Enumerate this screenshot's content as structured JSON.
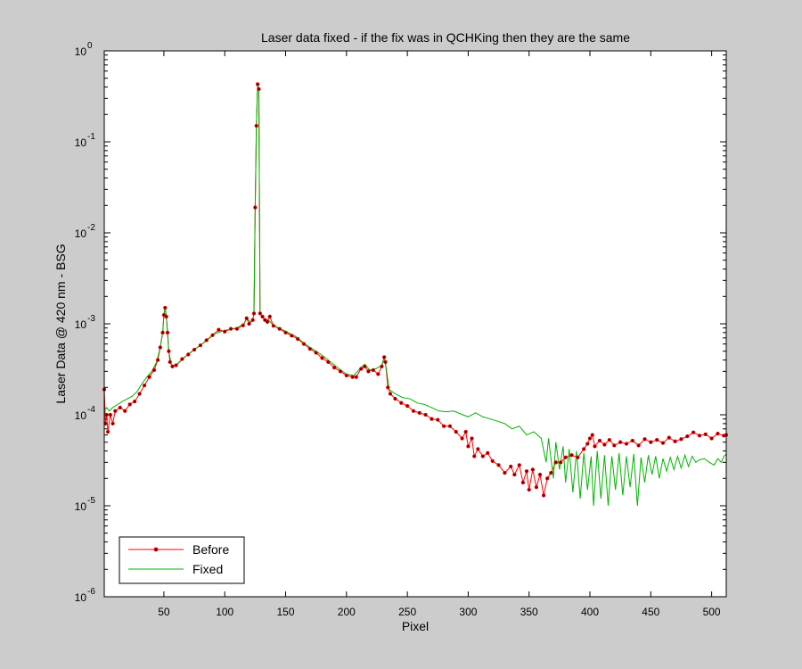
{
  "chart_data": {
    "type": "line",
    "title": "Laser data fixed - if the fix was in QCHKing then they are the same",
    "xlabel": "Pixel",
    "ylabel": "Laser Data @ 420 nm - BSG",
    "xlim": [
      1,
      512
    ],
    "ylim": [
      1e-06,
      1
    ],
    "yscale": "log",
    "xticks": [
      50,
      100,
      150,
      200,
      250,
      300,
      350,
      400,
      450,
      500
    ],
    "xtick_labels": [
      "50",
      "100",
      "150",
      "200",
      "250",
      "300",
      "350",
      "400",
      "450",
      "500"
    ],
    "ytick_exponents": [
      -6,
      -5,
      -4,
      -3,
      -2,
      -1,
      0
    ],
    "ytick_base": "10",
    "grid": false,
    "legend_position": "bottom-left",
    "series": [
      {
        "name": "Before",
        "color": "#ff0000",
        "marker_color": "#800000",
        "style": "line-with-dot-markers",
        "points": [
          [
            1,
            0.00019
          ],
          [
            2,
            8e-05
          ],
          [
            3,
            0.0001
          ],
          [
            4,
            6.5e-05
          ],
          [
            6,
            0.0001
          ],
          [
            8,
            8e-05
          ],
          [
            10,
            0.00011
          ],
          [
            14,
            0.00012
          ],
          [
            18,
            0.00011
          ],
          [
            22,
            0.00013
          ],
          [
            26,
            0.00014
          ],
          [
            30,
            0.00017
          ],
          [
            34,
            0.00021
          ],
          [
            38,
            0.00026
          ],
          [
            42,
            0.00031
          ],
          [
            45,
            0.0004
          ],
          [
            47,
            0.00055
          ],
          [
            49,
            0.0008
          ],
          [
            50,
            0.00125
          ],
          [
            51,
            0.0015
          ],
          [
            52,
            0.0012
          ],
          [
            53,
            0.0008
          ],
          [
            54,
            0.0005
          ],
          [
            55,
            0.00038
          ],
          [
            57,
            0.00034
          ],
          [
            60,
            0.00035
          ],
          [
            65,
            0.00041
          ],
          [
            70,
            0.00046
          ],
          [
            75,
            0.00052
          ],
          [
            80,
            0.00058
          ],
          [
            85,
            0.00066
          ],
          [
            90,
            0.00075
          ],
          [
            95,
            0.00086
          ],
          [
            100,
            0.00082
          ],
          [
            105,
            0.00088
          ],
          [
            110,
            0.00088
          ],
          [
            115,
            0.00096
          ],
          [
            118,
            0.00115
          ],
          [
            120,
            0.001
          ],
          [
            123,
            0.0011
          ],
          [
            124,
            0.0013
          ],
          [
            125,
            0.019
          ],
          [
            126,
            0.15
          ],
          [
            127,
            0.43
          ],
          [
            128,
            0.38
          ],
          [
            129,
            0.0013
          ],
          [
            131,
            0.0012
          ],
          [
            133,
            0.0011
          ],
          [
            135,
            0.00105
          ],
          [
            137,
            0.0012
          ],
          [
            140,
            0.00095
          ],
          [
            145,
            0.00088
          ],
          [
            150,
            0.0008
          ],
          [
            155,
            0.00074
          ],
          [
            160,
            0.00068
          ],
          [
            165,
            0.0006
          ],
          [
            170,
            0.00053
          ],
          [
            175,
            0.00048
          ],
          [
            180,
            0.00042
          ],
          [
            185,
            0.00038
          ],
          [
            190,
            0.00033
          ],
          [
            195,
            0.0003
          ],
          [
            200,
            0.00027
          ],
          [
            205,
            0.00026
          ],
          [
            208,
            0.00026
          ],
          [
            212,
            0.00032
          ],
          [
            215,
            0.00034
          ],
          [
            218,
            0.0003
          ],
          [
            222,
            0.00031
          ],
          [
            226,
            0.00028
          ],
          [
            229,
            0.00034
          ],
          [
            231,
            0.00043
          ],
          [
            232,
            0.00038
          ],
          [
            234,
            0.0002
          ],
          [
            236,
            0.00017
          ],
          [
            240,
            0.00015
          ],
          [
            245,
            0.000135
          ],
          [
            250,
            0.000125
          ],
          [
            255,
            0.00011
          ],
          [
            260,
            0.000105
          ],
          [
            265,
            0.0001
          ],
          [
            270,
            9e-05
          ],
          [
            275,
            8.8e-05
          ],
          [
            280,
            7.5e-05
          ],
          [
            285,
            7.5e-05
          ],
          [
            290,
            6.5e-05
          ],
          [
            295,
            5.5e-05
          ],
          [
            298,
            6.5e-05
          ],
          [
            300,
            4.5e-05
          ],
          [
            303,
            5.5e-05
          ],
          [
            305,
            3.5e-05
          ],
          [
            308,
            4.2e-05
          ],
          [
            312,
            3.5e-05
          ],
          [
            316,
            3.8e-05
          ],
          [
            320,
            3.1e-05
          ],
          [
            325,
            2.8e-05
          ],
          [
            330,
            2.3e-05
          ],
          [
            335,
            2.7e-05
          ],
          [
            338,
            2.2e-05
          ],
          [
            342,
            2.8e-05
          ],
          [
            345,
            1.8e-05
          ],
          [
            348,
            2.4e-05
          ],
          [
            350,
            1.5e-05
          ],
          [
            353,
            2.5e-05
          ],
          [
            356,
            1.6e-05
          ],
          [
            359,
            2.2e-05
          ],
          [
            362,
            1.3e-05
          ],
          [
            365,
            2e-05
          ],
          [
            368,
            2.3e-05
          ],
          [
            372,
            3e-05
          ],
          [
            376,
            3e-05
          ],
          [
            380,
            3.4e-05
          ],
          [
            385,
            3.6e-05
          ],
          [
            390,
            3.4e-05
          ],
          [
            395,
            4.2e-05
          ],
          [
            398,
            4.8e-05
          ],
          [
            400,
            5.5e-05
          ],
          [
            402,
            6e-05
          ],
          [
            404,
            4.5e-05
          ],
          [
            408,
            5.2e-05
          ],
          [
            412,
            4.7e-05
          ],
          [
            416,
            5.3e-05
          ],
          [
            420,
            4.6e-05
          ],
          [
            425,
            5e-05
          ],
          [
            430,
            4.8e-05
          ],
          [
            435,
            5.2e-05
          ],
          [
            440,
            4.6e-05
          ],
          [
            445,
            5.4e-05
          ],
          [
            450,
            5e-05
          ],
          [
            455,
            5.3e-05
          ],
          [
            460,
            4.9e-05
          ],
          [
            465,
            5.6e-05
          ],
          [
            470,
            5.1e-05
          ],
          [
            475,
            5.4e-05
          ],
          [
            480,
            5.8e-05
          ],
          [
            485,
            6.4e-05
          ],
          [
            490,
            5.9e-05
          ],
          [
            495,
            6.1e-05
          ],
          [
            500,
            5.5e-05
          ],
          [
            505,
            6.2e-05
          ],
          [
            510,
            5.9e-05
          ],
          [
            512,
            6e-05
          ]
        ]
      },
      {
        "name": "Fixed",
        "color": "#00b400",
        "style": "line",
        "points": [
          [
            1,
            0.00011
          ],
          [
            3,
            0.00012
          ],
          [
            5,
            0.00011
          ],
          [
            8,
            0.00012
          ],
          [
            12,
            0.00013
          ],
          [
            16,
            0.00014
          ],
          [
            20,
            0.00015
          ],
          [
            24,
            0.00016
          ],
          [
            28,
            0.00018
          ],
          [
            32,
            0.00022
          ],
          [
            36,
            0.00026
          ],
          [
            40,
            0.0003
          ],
          [
            44,
            0.00038
          ],
          [
            47,
            0.00055
          ],
          [
            49,
            0.0008
          ],
          [
            50,
            0.00125
          ],
          [
            51,
            0.0015
          ],
          [
            52,
            0.0012
          ],
          [
            53,
            0.0008
          ],
          [
            54,
            0.0005
          ],
          [
            56,
            0.00036
          ],
          [
            58,
            0.00034
          ],
          [
            62,
            0.00037
          ],
          [
            68,
            0.00044
          ],
          [
            74,
            0.00051
          ],
          [
            80,
            0.00058
          ],
          [
            86,
            0.00067
          ],
          [
            92,
            0.00078
          ],
          [
            98,
            0.00083
          ],
          [
            104,
            0.00087
          ],
          [
            110,
            0.0009
          ],
          [
            116,
            0.001
          ],
          [
            118,
            0.00115
          ],
          [
            121,
            0.00105
          ],
          [
            123,
            0.0011
          ],
          [
            124,
            0.0013
          ],
          [
            125,
            0.019
          ],
          [
            126,
            0.15
          ],
          [
            127,
            0.43
          ],
          [
            128,
            0.38
          ],
          [
            129,
            0.0013
          ],
          [
            132,
            0.00115
          ],
          [
            136,
            0.0011
          ],
          [
            140,
            0.00096
          ],
          [
            146,
            0.00088
          ],
          [
            152,
            0.0008
          ],
          [
            158,
            0.00073
          ],
          [
            164,
            0.00063
          ],
          [
            170,
            0.00055
          ],
          [
            176,
            0.00049
          ],
          [
            182,
            0.00043
          ],
          [
            188,
            0.00037
          ],
          [
            194,
            0.00032
          ],
          [
            200,
            0.00028
          ],
          [
            206,
            0.00027
          ],
          [
            212,
            0.00033
          ],
          [
            215,
            0.00036
          ],
          [
            219,
            0.00031
          ],
          [
            224,
            0.00032
          ],
          [
            229,
            0.00035
          ],
          [
            231,
            0.00043
          ],
          [
            233,
            0.0003
          ],
          [
            235,
            0.00019
          ],
          [
            240,
            0.00017
          ],
          [
            246,
            0.000155
          ],
          [
            252,
            0.00015
          ],
          [
            258,
            0.000135
          ],
          [
            264,
            0.00013
          ],
          [
            270,
            0.00012
          ],
          [
            276,
            0.00011
          ],
          [
            282,
            0.000108
          ],
          [
            288,
            0.00011
          ],
          [
            294,
            0.000102
          ],
          [
            300,
            9.5e-05
          ],
          [
            306,
            0.000105
          ],
          [
            312,
            9.5e-05
          ],
          [
            318,
            9e-05
          ],
          [
            324,
            8.5e-05
          ],
          [
            330,
            8e-05
          ],
          [
            336,
            7e-05
          ],
          [
            342,
            7.5e-05
          ],
          [
            348,
            6e-05
          ],
          [
            354,
            6.5e-05
          ],
          [
            360,
            5.5e-05
          ],
          [
            364,
            3e-05
          ],
          [
            366,
            5.5e-05
          ],
          [
            370,
            2e-05
          ],
          [
            372,
            5e-05
          ],
          [
            375,
            2.5e-05
          ],
          [
            378,
            4.5e-05
          ],
          [
            380,
            1.8e-05
          ],
          [
            383,
            4.2e-05
          ],
          [
            386,
            1.4e-05
          ],
          [
            389,
            4e-05
          ],
          [
            392,
            1.2e-05
          ],
          [
            395,
            3.8e-05
          ],
          [
            398,
            1.5e-05
          ],
          [
            401,
            3.5e-05
          ],
          [
            403,
            1e-05
          ],
          [
            406,
            4e-05
          ],
          [
            409,
            1.2e-05
          ],
          [
            412,
            3.6e-05
          ],
          [
            415,
            1e-05
          ],
          [
            418,
            3.5e-05
          ],
          [
            421,
            1.5e-05
          ],
          [
            424,
            3.8e-05
          ],
          [
            427,
            1.3e-05
          ],
          [
            430,
            3.5e-05
          ],
          [
            433,
            1.6e-05
          ],
          [
            436,
            3.7e-05
          ],
          [
            439,
            1e-05
          ],
          [
            442,
            3.4e-05
          ],
          [
            445,
            1.8e-05
          ],
          [
            448,
            3.6e-05
          ],
          [
            451,
            2.2e-05
          ],
          [
            454,
            3.5e-05
          ],
          [
            457,
            2e-05
          ],
          [
            460,
            3.3e-05
          ],
          [
            463,
            2.4e-05
          ],
          [
            466,
            3.4e-05
          ],
          [
            469,
            2.5e-05
          ],
          [
            472,
            3.5e-05
          ],
          [
            475,
            2.6e-05
          ],
          [
            478,
            3.6e-05
          ],
          [
            481,
            2.7e-05
          ],
          [
            484,
            3.5e-05
          ],
          [
            487,
            3e-05
          ],
          [
            490,
            3.2e-05
          ],
          [
            494,
            3.3e-05
          ],
          [
            498,
            3e-05
          ],
          [
            502,
            2.8e-05
          ],
          [
            505,
            3.3e-05
          ],
          [
            508,
            3e-05
          ],
          [
            510,
            3.5e-05
          ],
          [
            512,
            3.7e-05
          ]
        ]
      }
    ]
  }
}
